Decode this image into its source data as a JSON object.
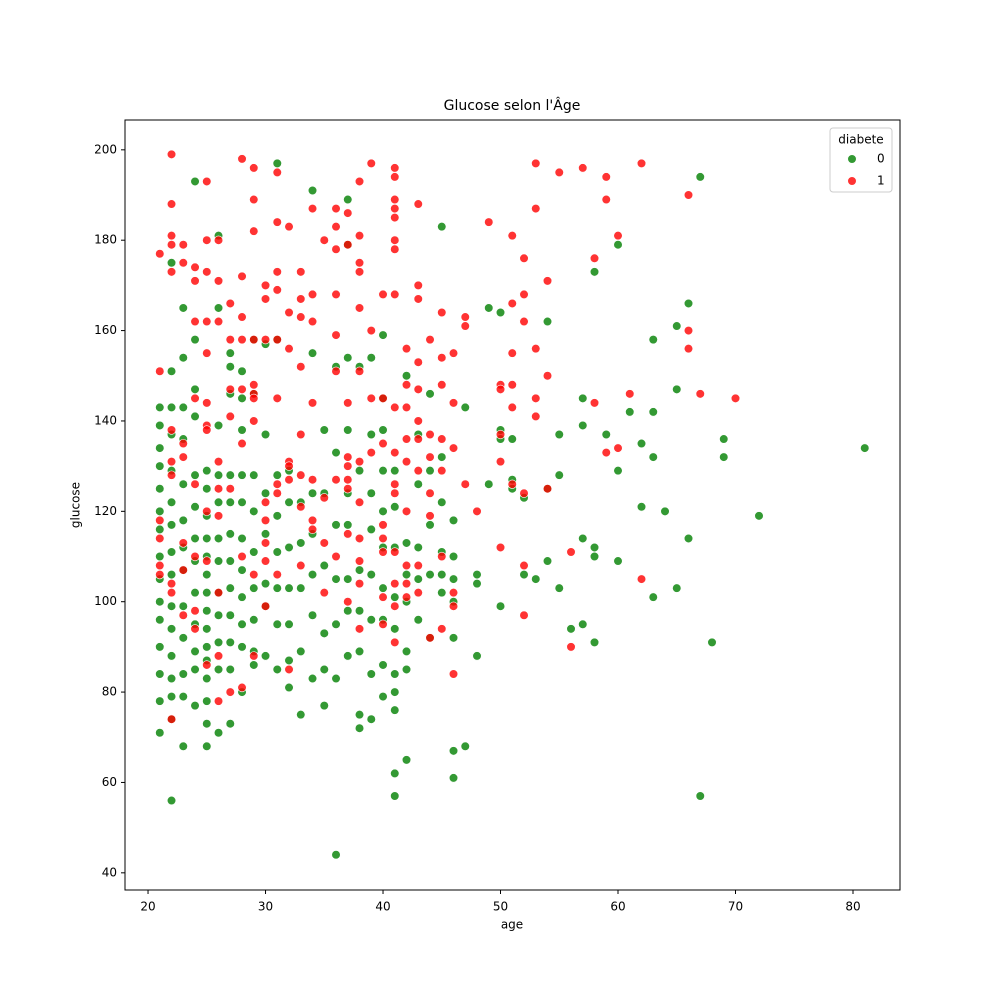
{
  "chart_data": {
    "type": "scatter",
    "title": "Glucose selon l'Âge",
    "x_label": "age",
    "y_label": "glucose",
    "xlim": [
      18.04,
      84
    ],
    "ylim": [
      36.2,
      206.6
    ],
    "xticks": [
      20,
      30,
      40,
      50,
      60,
      70,
      80
    ],
    "yticks": [
      40,
      60,
      80,
      100,
      120,
      140,
      160,
      180,
      200
    ],
    "grid": false,
    "legend_title": "diabete",
    "legend_position": "upper-right",
    "series": [
      {
        "name": "0",
        "color": "#008000",
        "x": [
          21,
          21,
          21,
          21,
          21,
          21,
          21,
          21,
          21,
          21,
          21,
          21,
          21,
          21,
          21,
          22,
          22,
          22,
          22,
          22,
          22,
          22,
          22,
          22,
          22,
          22,
          22,
          22,
          22,
          22,
          22,
          23,
          23,
          23,
          23,
          23,
          23,
          23,
          23,
          23,
          23,
          23,
          23,
          23,
          24,
          24,
          24,
          24,
          24,
          24,
          24,
          24,
          24,
          24,
          24,
          24,
          24,
          25,
          25,
          25,
          25,
          25,
          25,
          25,
          25,
          25,
          25,
          25,
          25,
          25,
          25,
          25,
          26,
          26,
          26,
          26,
          26,
          26,
          26,
          26,
          26,
          26,
          26,
          26,
          27,
          27,
          27,
          27,
          27,
          27,
          27,
          27,
          27,
          27,
          27,
          27,
          28,
          28,
          28,
          28,
          28,
          28,
          28,
          28,
          28,
          28,
          28,
          29,
          29,
          29,
          29,
          29,
          29,
          29,
          29,
          29,
          30,
          30,
          30,
          30,
          30,
          30,
          30,
          31,
          31,
          31,
          31,
          31,
          31,
          31,
          31,
          32,
          32,
          32,
          32,
          32,
          32,
          32,
          33,
          33,
          33,
          33,
          33,
          34,
          34,
          34,
          34,
          34,
          34,
          34,
          35,
          35,
          35,
          35,
          35,
          35,
          36,
          36,
          36,
          36,
          36,
          36,
          36,
          37,
          37,
          37,
          37,
          37,
          37,
          37,
          37,
          37,
          38,
          38,
          38,
          38,
          38,
          38,
          38,
          39,
          39,
          39,
          39,
          39,
          39,
          39,
          39,
          40,
          40,
          40,
          40,
          40,
          40,
          40,
          40,
          40,
          40,
          41,
          41,
          41,
          41,
          41,
          41,
          41,
          41,
          41,
          41,
          42,
          42,
          42,
          42,
          42,
          42,
          42,
          43,
          43,
          43,
          43,
          43,
          44,
          44,
          44,
          44,
          44,
          45,
          45,
          45,
          45,
          45,
          45,
          46,
          46,
          46,
          46,
          46,
          46,
          46,
          47,
          47,
          48,
          48,
          48,
          49,
          49,
          50,
          50,
          50,
          50,
          51,
          51,
          51,
          52,
          52,
          53,
          54,
          54,
          54,
          55,
          55,
          55,
          56,
          57,
          57,
          57,
          57,
          58,
          58,
          58,
          58,
          59,
          60,
          60,
          60,
          61,
          62,
          62,
          63,
          63,
          63,
          63,
          64,
          65,
          65,
          65,
          66,
          66,
          67,
          67,
          68,
          69,
          69,
          72,
          81
        ],
        "values": [
          143,
          139,
          134,
          130,
          125,
          120,
          116,
          110,
          105,
          100,
          96,
          90,
          84,
          78,
          71,
          175,
          151,
          143,
          137,
          129,
          122,
          117,
          111,
          106,
          99,
          94,
          88,
          83,
          79,
          74,
          56,
          165,
          154,
          143,
          136,
          126,
          118,
          112,
          107,
          99,
          92,
          84,
          79,
          68,
          193,
          158,
          147,
          141,
          128,
          121,
          114,
          109,
          102,
          95,
          89,
          85,
          77,
          129,
          125,
          119,
          114,
          110,
          106,
          102,
          98,
          94,
          90,
          87,
          83,
          78,
          73,
          68,
          181,
          165,
          139,
          128,
          122,
          114,
          109,
          102,
          97,
          91,
          85,
          71,
          155,
          152,
          146,
          128,
          122,
          115,
          109,
          103,
          97,
          91,
          85,
          73,
          151,
          145,
          138,
          128,
          122,
          114,
          107,
          101,
          95,
          90,
          80,
          158,
          146,
          128,
          120,
          111,
          103,
          96,
          89,
          86,
          157,
          137,
          124,
          115,
          104,
          99,
          88,
          197,
          158,
          128,
          119,
          111,
          103,
          95,
          85,
          129,
          122,
          112,
          103,
          95,
          87,
          81,
          122,
          113,
          103,
          89,
          75,
          191,
          155,
          124,
          115,
          106,
          97,
          83,
          138,
          124,
          108,
          93,
          85,
          77,
          152,
          133,
          117,
          105,
          95,
          83,
          44,
          189,
          179,
          154,
          138,
          124,
          117,
          105,
          98,
          88,
          152,
          129,
          107,
          98,
          89,
          75,
          72,
          154,
          137,
          124,
          116,
          106,
          96,
          84,
          74,
          159,
          145,
          138,
          129,
          120,
          112,
          103,
          96,
          86,
          79,
          129,
          121,
          112,
          101,
          94,
          84,
          80,
          76,
          62,
          57,
          150,
          113,
          106,
          100,
          89,
          85,
          65,
          137,
          126,
          112,
          105,
          96,
          146,
          129,
          117,
          106,
          92,
          183,
          132,
          122,
          111,
          106,
          102,
          118,
          110,
          105,
          100,
          92,
          67,
          61,
          143,
          68,
          106,
          104,
          88,
          126,
          165,
          164,
          138,
          136,
          99,
          136,
          127,
          125,
          123,
          106,
          105,
          162,
          125,
          109,
          137,
          128,
          103,
          94,
          145,
          139,
          114,
          95,
          173,
          112,
          110,
          91,
          137,
          179,
          129,
          109,
          142,
          135,
          121,
          158,
          142,
          132,
          101,
          120,
          161,
          147,
          103,
          166,
          114,
          194,
          57,
          91,
          136,
          132,
          119,
          134
        ]
      },
      {
        "name": "1",
        "color": "#ff0000",
        "x": [
          21,
          21,
          21,
          21,
          21,
          21,
          22,
          22,
          22,
          22,
          22,
          22,
          22,
          22,
          22,
          22,
          22,
          23,
          23,
          23,
          23,
          23,
          23,
          23,
          24,
          24,
          24,
          24,
          24,
          24,
          24,
          24,
          25,
          25,
          25,
          25,
          25,
          25,
          25,
          25,
          25,
          25,
          25,
          26,
          26,
          26,
          26,
          26,
          26,
          26,
          26,
          26,
          27,
          27,
          27,
          27,
          27,
          27,
          28,
          28,
          28,
          28,
          28,
          28,
          28,
          28,
          29,
          29,
          29,
          29,
          29,
          29,
          29,
          29,
          29,
          29,
          30,
          30,
          30,
          30,
          30,
          30,
          30,
          30,
          31,
          31,
          31,
          31,
          31,
          31,
          31,
          31,
          31,
          32,
          32,
          32,
          32,
          32,
          32,
          32,
          33,
          33,
          33,
          33,
          33,
          33,
          33,
          33,
          34,
          34,
          34,
          34,
          34,
          34,
          34,
          35,
          35,
          35,
          35,
          36,
          36,
          36,
          36,
          36,
          36,
          36,
          36,
          37,
          37,
          37,
          37,
          37,
          37,
          37,
          37,
          37,
          38,
          38,
          38,
          38,
          38,
          38,
          38,
          38,
          38,
          38,
          38,
          38,
          39,
          39,
          39,
          39,
          40,
          40,
          40,
          40,
          40,
          40,
          40,
          40,
          41,
          41,
          41,
          41,
          41,
          41,
          41,
          41,
          41,
          41,
          41,
          41,
          41,
          41,
          41,
          41,
          42,
          42,
          42,
          42,
          42,
          42,
          42,
          42,
          42,
          43,
          43,
          43,
          43,
          43,
          43,
          43,
          43,
          43,
          43,
          44,
          44,
          44,
          44,
          44,
          44,
          45,
          45,
          45,
          45,
          45,
          45,
          45,
          46,
          46,
          46,
          46,
          46,
          46,
          47,
          47,
          47,
          48,
          49,
          50,
          50,
          50,
          50,
          50,
          51,
          51,
          51,
          51,
          51,
          51,
          52,
          52,
          52,
          52,
          52,
          52,
          53,
          53,
          53,
          53,
          53,
          54,
          54,
          54,
          55,
          56,
          56,
          57,
          58,
          58,
          59,
          59,
          59,
          60,
          60,
          61,
          62,
          62,
          66,
          66,
          66,
          67,
          70
        ],
        "values": [
          177,
          151,
          118,
          114,
          106,
          108,
          199,
          188,
          181,
          179,
          173,
          138,
          131,
          128,
          104,
          102,
          74,
          179,
          175,
          135,
          132,
          113,
          107,
          97,
          174,
          171,
          162,
          145,
          126,
          110,
          98,
          94,
          193,
          180,
          173,
          162,
          155,
          144,
          139,
          138,
          120,
          109,
          86,
          180,
          171,
          162,
          131,
          125,
          119,
          102,
          88,
          78,
          166,
          158,
          147,
          141,
          125,
          80,
          198,
          172,
          163,
          158,
          147,
          135,
          110,
          81,
          196,
          189,
          182,
          158,
          148,
          146,
          145,
          140,
          106,
          88,
          170,
          167,
          158,
          122,
          118,
          113,
          109,
          99,
          195,
          184,
          173,
          169,
          158,
          145,
          126,
          124,
          106,
          183,
          164,
          156,
          131,
          130,
          127,
          85,
          173,
          167,
          163,
          152,
          137,
          128,
          121,
          108,
          187,
          168,
          162,
          144,
          127,
          118,
          116,
          180,
          123,
          113,
          102,
          187,
          183,
          178,
          168,
          159,
          151,
          127,
          110,
          186,
          179,
          144,
          132,
          130,
          127,
          125,
          115,
          100,
          193,
          181,
          175,
          173,
          165,
          151,
          131,
          122,
          114,
          109,
          104,
          94,
          197,
          160,
          145,
          133,
          168,
          145,
          135,
          117,
          114,
          111,
          101,
          95,
          196,
          194,
          189,
          187,
          185,
          180,
          178,
          168,
          143,
          133,
          126,
          124,
          111,
          104,
          99,
          91,
          156,
          148,
          143,
          136,
          131,
          120,
          108,
          104,
          101,
          188,
          170,
          167,
          153,
          147,
          140,
          136,
          129,
          108,
          102,
          158,
          137,
          132,
          124,
          119,
          92,
          164,
          154,
          148,
          136,
          129,
          110,
          94,
          155,
          144,
          134,
          102,
          99,
          84,
          163,
          161,
          126,
          120,
          184,
          148,
          147,
          137,
          131,
          112,
          181,
          166,
          155,
          148,
          143,
          126,
          176,
          168,
          162,
          124,
          108,
          97,
          197,
          187,
          156,
          145,
          141,
          171,
          150,
          125,
          195,
          111,
          90,
          196,
          176,
          144,
          194,
          189,
          133,
          181,
          134,
          146,
          197,
          105,
          190,
          160,
          156,
          146,
          145
        ]
      }
    ]
  }
}
